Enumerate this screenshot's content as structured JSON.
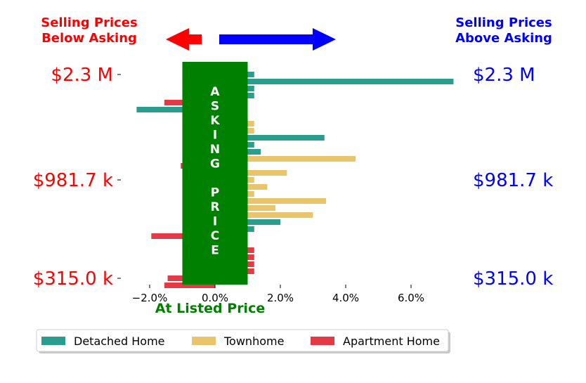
{
  "chart_data": {
    "type": "bar",
    "orientation": "horizontal",
    "header_left": [
      "Selling Prices",
      "Below Asking"
    ],
    "header_right": [
      "Selling Prices",
      "Above Asking"
    ],
    "center_label": "At Listed Price",
    "band_label": [
      "A",
      "S",
      "K",
      "I",
      "N",
      "G",
      "",
      "P",
      "R",
      "I",
      "C",
      "E"
    ],
    "x_ticks": [
      {
        "value": -2.0,
        "label": "−2.0%"
      },
      {
        "value": 0.0,
        "label": "0.0%"
      },
      {
        "value": 2.0,
        "label": "2.0%"
      },
      {
        "value": 4.0,
        "label": "4.0%"
      },
      {
        "value": 6.0,
        "label": "6.0%"
      }
    ],
    "y_ticks": [
      {
        "row": 0,
        "label": "$2.3 M"
      },
      {
        "row": 15,
        "label": "$981.7 k"
      },
      {
        "row": 29,
        "label": "$315.0 k"
      }
    ],
    "xlim": [
      -2.6,
      7.3
    ],
    "asking_band": [
      -1.0,
      1.0
    ],
    "series": [
      {
        "name": "Detached Home",
        "color": "#2a9d8f"
      },
      {
        "name": "Townhome",
        "color": "#e9c46a"
      },
      {
        "name": "Apartment Home",
        "color": "#e63946"
      }
    ],
    "bars": [
      {
        "row": 0,
        "series": 0,
        "value": 1.2
      },
      {
        "row": 1,
        "series": 0,
        "value": 7.3
      },
      {
        "row": 2,
        "series": 0,
        "value": 1.2
      },
      {
        "row": 3,
        "series": 0,
        "value": 1.2
      },
      {
        "row": 4,
        "series": 2,
        "value": -1.55
      },
      {
        "row": 5,
        "series": 0,
        "value": -2.4
      },
      {
        "row": 7,
        "series": 1,
        "value": 1.2
      },
      {
        "row": 8,
        "series": 1,
        "value": 1.2
      },
      {
        "row": 9,
        "series": 0,
        "value": 3.35
      },
      {
        "row": 10,
        "series": 0,
        "value": 1.2
      },
      {
        "row": 11,
        "series": 0,
        "value": 1.4
      },
      {
        "row": 12,
        "series": 1,
        "value": 4.3
      },
      {
        "row": 13,
        "series": 2,
        "value": -1.05
      },
      {
        "row": 14,
        "series": 1,
        "value": 2.2
      },
      {
        "row": 15,
        "series": 1,
        "value": 1.2
      },
      {
        "row": 16,
        "series": 1,
        "value": 1.6
      },
      {
        "row": 17,
        "series": 1,
        "value": 1.2
      },
      {
        "row": 18,
        "series": 1,
        "value": 3.4
      },
      {
        "row": 19,
        "series": 1,
        "value": 1.85
      },
      {
        "row": 20,
        "series": 1,
        "value": 3.0
      },
      {
        "row": 21,
        "series": 0,
        "value": 2.0
      },
      {
        "row": 22,
        "series": 0,
        "value": 1.2
      },
      {
        "row": 23,
        "series": 2,
        "value": -1.95
      },
      {
        "row": 25,
        "series": 2,
        "value": 1.2
      },
      {
        "row": 26,
        "series": 2,
        "value": 1.2
      },
      {
        "row": 27,
        "series": 2,
        "value": 1.2
      },
      {
        "row": 28,
        "series": 2,
        "value": 1.2
      },
      {
        "row": 29,
        "series": 2,
        "value": -1.45
      },
      {
        "row": 30,
        "series": 2,
        "value": -1.55
      }
    ],
    "colors": {
      "left_text": "#ff0000",
      "right_text": "#0000ff",
      "band": "#008000",
      "band_text": "#ffffff",
      "arrow_left": "#ff0000",
      "arrow_right": "#0000ff"
    }
  }
}
